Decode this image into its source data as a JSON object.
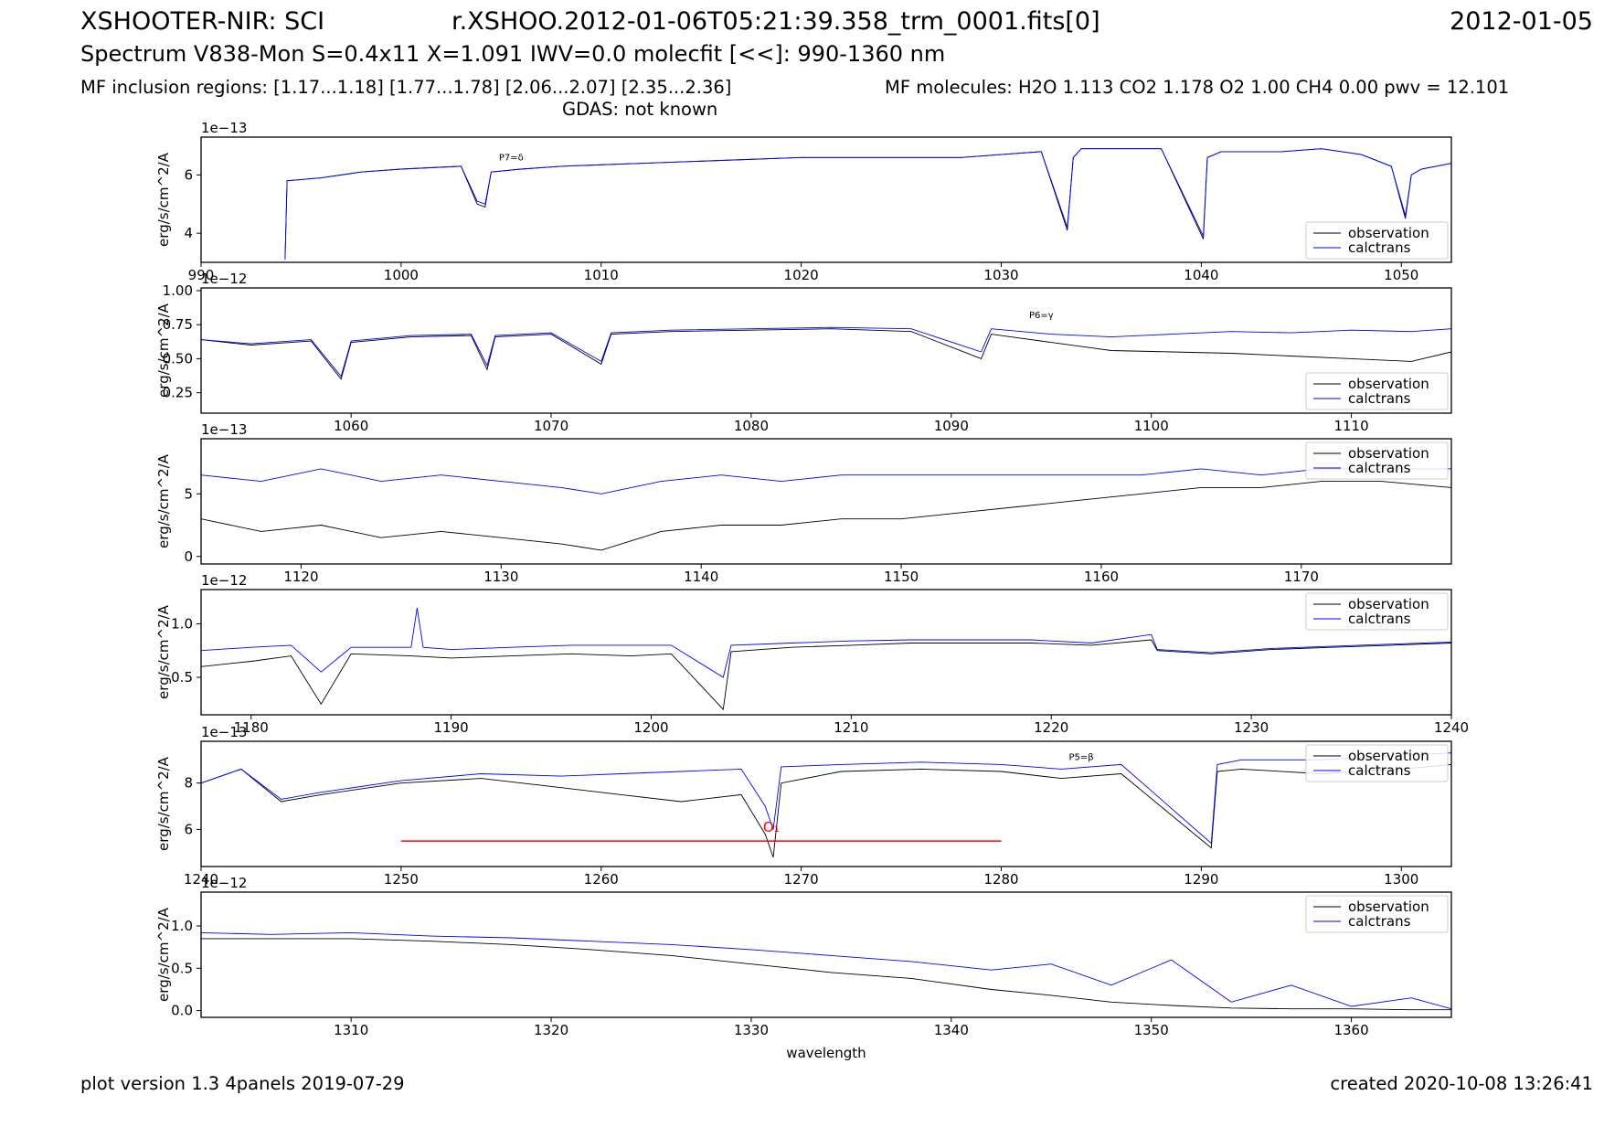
{
  "header": {
    "instrument": "XSHOOTER-NIR: SCI",
    "filename": "r.XSHOO.2012-01-06T05:21:39.358_trm_0001.fits[0]",
    "date": "2012-01-05",
    "spectrum_line": "Spectrum V838-Mon S=0.4x11 X=1.091 IWV=0.0 molecfit [<<]: 990-1360 nm",
    "inclusion_regions": "MF inclusion regions:  [1.17...1.18]  [1.77...1.78]  [2.06...2.07]  [2.35...2.36]",
    "molecules": "MF molecules: H2O 1.113 CO2 1.178 O2 1.00 CH4 0.00 pwv = 12.101",
    "gdas": "GDAS: not known"
  },
  "footer": {
    "plot_version": "plot version 1.3 4panels  2019-07-29",
    "created": "created 2020-10-08 13:26:41"
  },
  "colors": {
    "observation": "#000000",
    "calctrans": "#0000ff",
    "marker": "#ff0000"
  },
  "chart_data": [
    {
      "type": "line",
      "xlim": [
        990,
        1052.5
      ],
      "ylim": [
        3.0,
        7.3
      ],
      "exponent": "1e−13",
      "ylabel": "erg/s/cm^2/A",
      "xlabel": "",
      "xticks": [
        990,
        1000,
        1010,
        1020,
        1030,
        1040,
        1050
      ],
      "xtick_labels": [
        "990",
        "1000",
        "1010",
        "1020",
        "1030",
        "1040",
        "1050"
      ],
      "yticks": [
        4,
        6
      ],
      "ytick_labels": [
        "4",
        "6"
      ],
      "legend": "bottom-right",
      "series": [
        {
          "name": "observation",
          "x": [
            994.2,
            994.3,
            996,
            998,
            1000,
            1003,
            1003.8,
            1004.2,
            1004.5,
            1006,
            1008,
            1012,
            1016,
            1020,
            1024,
            1028,
            1030,
            1032,
            1033.3,
            1033.6,
            1034,
            1036,
            1038,
            1040.1,
            1040.3,
            1041,
            1044,
            1046,
            1048,
            1049.5,
            1050.2,
            1050.5,
            1051,
            1052.5
          ],
          "y": [
            3.1,
            5.8,
            5.9,
            6.1,
            6.2,
            6.3,
            5.0,
            4.9,
            6.1,
            6.2,
            6.3,
            6.4,
            6.5,
            6.6,
            6.6,
            6.6,
            6.7,
            6.8,
            4.1,
            6.6,
            6.9,
            6.9,
            6.9,
            3.8,
            6.6,
            6.8,
            6.8,
            6.9,
            6.7,
            6.3,
            4.5,
            6.0,
            6.2,
            6.4
          ]
        },
        {
          "name": "calctrans",
          "x": [
            994.2,
            994.3,
            996,
            998,
            1000,
            1003,
            1003.8,
            1004.2,
            1004.5,
            1006,
            1008,
            1012,
            1016,
            1020,
            1024,
            1028,
            1030,
            1032,
            1033.3,
            1033.6,
            1034,
            1036,
            1038,
            1040.1,
            1040.3,
            1041,
            1044,
            1046,
            1048,
            1049.5,
            1050.2,
            1050.5,
            1051,
            1052.5
          ],
          "y": [
            3.1,
            5.8,
            5.9,
            6.1,
            6.2,
            6.3,
            5.1,
            5.0,
            6.1,
            6.2,
            6.3,
            6.4,
            6.5,
            6.6,
            6.6,
            6.6,
            6.7,
            6.8,
            4.2,
            6.6,
            6.9,
            6.9,
            6.9,
            3.9,
            6.6,
            6.8,
            6.8,
            6.9,
            6.7,
            6.3,
            4.6,
            6.0,
            6.2,
            6.4
          ]
        }
      ],
      "annotations": [
        {
          "text": "P7=δ",
          "x": 1005.5,
          "y": 6.5
        }
      ]
    },
    {
      "type": "line",
      "xlim": [
        1052.5,
        1115
      ],
      "ylim": [
        0.1,
        1.02
      ],
      "exponent": "1e−12",
      "ylabel": "erg/s/cm^2/A",
      "xlabel": "",
      "xticks": [
        1060,
        1070,
        1080,
        1090,
        1100,
        1110
      ],
      "xtick_labels": [
        "1060",
        "1070",
        "1080",
        "1090",
        "1100",
        "1110"
      ],
      "yticks": [
        0.25,
        0.5,
        0.75,
        1.0
      ],
      "ytick_labels": [
        "0.25",
        "0.50",
        "0.75",
        "1.00"
      ],
      "legend": "bottom-right",
      "series": [
        {
          "name": "observation",
          "x": [
            1052.5,
            1055,
            1058,
            1059.5,
            1060,
            1063,
            1066,
            1066.8,
            1067.2,
            1070,
            1072.5,
            1073,
            1076,
            1080,
            1084,
            1088,
            1091.5,
            1092,
            1095,
            1098,
            1101,
            1104,
            1107,
            1110,
            1113,
            1115
          ],
          "y": [
            0.64,
            0.6,
            0.63,
            0.35,
            0.62,
            0.66,
            0.67,
            0.42,
            0.66,
            0.68,
            0.46,
            0.68,
            0.7,
            0.71,
            0.72,
            0.7,
            0.5,
            0.68,
            0.62,
            0.56,
            0.55,
            0.54,
            0.52,
            0.5,
            0.48,
            0.55
          ]
        },
        {
          "name": "calctrans",
          "x": [
            1052.5,
            1055,
            1058,
            1059.5,
            1060,
            1063,
            1066,
            1066.8,
            1067.2,
            1070,
            1072.5,
            1073,
            1076,
            1080,
            1084,
            1088,
            1091.5,
            1092,
            1095,
            1098,
            1101,
            1104,
            1107,
            1110,
            1113,
            1115
          ],
          "y": [
            0.64,
            0.61,
            0.64,
            0.37,
            0.63,
            0.67,
            0.68,
            0.45,
            0.67,
            0.69,
            0.48,
            0.69,
            0.71,
            0.72,
            0.73,
            0.72,
            0.55,
            0.72,
            0.68,
            0.66,
            0.68,
            0.7,
            0.69,
            0.71,
            0.7,
            0.72
          ]
        }
      ],
      "annotations": [
        {
          "text": "P6=γ",
          "x": 1094.5,
          "y": 0.8
        }
      ]
    },
    {
      "type": "line",
      "xlim": [
        1115,
        1177.5
      ],
      "ylim": [
        -0.6,
        9.4
      ],
      "exponent": "1e−13",
      "ylabel": "erg/s/cm^2/A",
      "xlabel": "",
      "xticks": [
        1120,
        1130,
        1140,
        1150,
        1160,
        1170
      ],
      "xtick_labels": [
        "1120",
        "1130",
        "1140",
        "1150",
        "1160",
        "1170"
      ],
      "yticks": [
        0,
        5
      ],
      "ytick_labels": [
        "0",
        "5"
      ],
      "legend": "top-right",
      "series": [
        {
          "name": "observation",
          "x": [
            1115,
            1118,
            1121,
            1124,
            1127,
            1130,
            1133,
            1135,
            1138,
            1141,
            1144,
            1147,
            1150,
            1153,
            1156,
            1159,
            1162,
            1165,
            1168,
            1171,
            1174,
            1177.5
          ],
          "y": [
            3.0,
            2.0,
            2.5,
            1.5,
            2.0,
            1.5,
            1.0,
            0.5,
            2.0,
            2.5,
            2.5,
            3.0,
            3.0,
            3.5,
            4.0,
            4.5,
            5.0,
            5.5,
            5.5,
            6.0,
            6.0,
            5.5
          ]
        },
        {
          "name": "calctrans",
          "x": [
            1115,
            1118,
            1121,
            1124,
            1127,
            1130,
            1133,
            1135,
            1138,
            1141,
            1144,
            1147,
            1150,
            1153,
            1156,
            1159,
            1162,
            1165,
            1168,
            1171,
            1174,
            1177.5
          ],
          "y": [
            6.5,
            6.0,
            7.0,
            6.0,
            6.5,
            6.0,
            5.5,
            5.0,
            6.0,
            6.5,
            6.0,
            6.5,
            6.5,
            6.5,
            6.5,
            6.5,
            6.5,
            7.0,
            6.5,
            7.0,
            7.0,
            7.0
          ]
        }
      ],
      "annotations": []
    },
    {
      "type": "line",
      "xlim": [
        1177.5,
        1240
      ],
      "ylim": [
        0.15,
        1.32
      ],
      "exponent": "1e−12",
      "ylabel": "erg/s/cm^2/A",
      "xlabel": "",
      "xticks": [
        1180,
        1190,
        1200,
        1210,
        1220,
        1230,
        1240
      ],
      "xtick_labels": [
        "1180",
        "1190",
        "1200",
        "1210",
        "1220",
        "1230",
        "1240"
      ],
      "yticks": [
        0.5,
        1.0
      ],
      "ytick_labels": [
        "0.5",
        "1.0"
      ],
      "legend": "top-right",
      "series": [
        {
          "name": "observation",
          "x": [
            1177.5,
            1180,
            1182,
            1183.5,
            1185,
            1188,
            1190,
            1193,
            1196,
            1199,
            1201,
            1203.6,
            1204,
            1207,
            1210,
            1213,
            1216,
            1219,
            1222,
            1225,
            1225.3,
            1228,
            1231,
            1234,
            1237,
            1240
          ],
          "y": [
            0.6,
            0.65,
            0.7,
            0.25,
            0.72,
            0.7,
            0.68,
            0.7,
            0.72,
            0.7,
            0.72,
            0.2,
            0.74,
            0.78,
            0.8,
            0.82,
            0.82,
            0.82,
            0.8,
            0.85,
            0.75,
            0.72,
            0.76,
            0.78,
            0.8,
            0.82
          ]
        },
        {
          "name": "calctrans",
          "x": [
            1177.5,
            1180,
            1182,
            1183.5,
            1185,
            1188,
            1188.3,
            1188.6,
            1190,
            1193,
            1196,
            1199,
            1201,
            1203.6,
            1204,
            1207,
            1210,
            1213,
            1216,
            1219,
            1222,
            1225,
            1225.3,
            1228,
            1231,
            1234,
            1237,
            1240
          ],
          "y": [
            0.75,
            0.78,
            0.8,
            0.55,
            0.78,
            0.78,
            1.15,
            0.78,
            0.76,
            0.78,
            0.8,
            0.8,
            0.8,
            0.5,
            0.8,
            0.82,
            0.84,
            0.85,
            0.85,
            0.85,
            0.82,
            0.9,
            0.76,
            0.73,
            0.77,
            0.79,
            0.81,
            0.83
          ]
        }
      ],
      "annotations": []
    },
    {
      "type": "line",
      "xlim": [
        1240,
        1302.5
      ],
      "ylim": [
        4.4,
        9.8
      ],
      "exponent": "1e−13",
      "ylabel": "erg/s/cm^2/A",
      "xlabel": "",
      "xticks": [
        1240,
        1250,
        1260,
        1270,
        1280,
        1290,
        1300
      ],
      "xtick_labels": [
        "1240",
        "1250",
        "1260",
        "1270",
        "1280",
        "1290",
        "1300"
      ],
      "yticks": [
        6,
        8
      ],
      "ytick_labels": [
        "6",
        "8"
      ],
      "legend": "top-right",
      "series": [
        {
          "name": "observation",
          "x": [
            1240,
            1242,
            1244,
            1246,
            1250,
            1254,
            1258,
            1261,
            1264,
            1267,
            1268.2,
            1268.6,
            1269,
            1272,
            1276,
            1280,
            1283,
            1286,
            1290.5,
            1290.8,
            1292,
            1296,
            1300,
            1302.5
          ],
          "y": [
            8.0,
            8.6,
            7.2,
            7.5,
            8.0,
            8.2,
            7.8,
            7.5,
            7.2,
            7.5,
            5.8,
            4.8,
            8.0,
            8.5,
            8.6,
            8.5,
            8.2,
            8.4,
            5.2,
            8.5,
            8.6,
            8.4,
            8.6,
            8.8
          ]
        },
        {
          "name": "calctrans",
          "x": [
            1240,
            1242,
            1244,
            1246,
            1250,
            1254,
            1258,
            1261,
            1264,
            1267,
            1268.2,
            1268.6,
            1269,
            1272,
            1276,
            1280,
            1283,
            1286,
            1290.5,
            1290.8,
            1292,
            1296,
            1300,
            1302.5
          ],
          "y": [
            8.0,
            8.6,
            7.3,
            7.6,
            8.1,
            8.4,
            8.3,
            8.4,
            8.5,
            8.6,
            7.0,
            6.0,
            8.7,
            8.8,
            8.9,
            8.8,
            8.6,
            8.8,
            5.4,
            8.8,
            9.0,
            9.0,
            9.2,
            9.3
          ]
        }
      ],
      "annotations": [
        {
          "text": "P5=β",
          "x": 1284,
          "y": 9.0
        }
      ],
      "marker": {
        "label": "O₁",
        "label_x": 1268.5,
        "label_y": 5.9,
        "x_start": 1250,
        "x_end": 1280,
        "y": 5.5
      }
    },
    {
      "type": "line",
      "xlim": [
        1302.5,
        1365
      ],
      "ylim": [
        -0.08,
        1.4
      ],
      "exponent": "1e−12",
      "ylabel": "erg/s/cm^2/A",
      "xlabel": "wavelength",
      "xticks": [
        1310,
        1320,
        1330,
        1340,
        1350,
        1360
      ],
      "xtick_labels": [
        "1310",
        "1320",
        "1330",
        "1340",
        "1350",
        "1360"
      ],
      "yticks": [
        0.0,
        0.5,
        1.0
      ],
      "ytick_labels": [
        "0.0",
        "0.5",
        "1.0"
      ],
      "legend": "top-right",
      "series": [
        {
          "name": "observation",
          "x": [
            1302.5,
            1306,
            1310,
            1314,
            1318,
            1322,
            1326,
            1330,
            1334,
            1338,
            1342,
            1345,
            1348,
            1351,
            1354,
            1357,
            1360,
            1363,
            1365
          ],
          "y": [
            0.85,
            0.85,
            0.85,
            0.82,
            0.78,
            0.72,
            0.65,
            0.55,
            0.45,
            0.38,
            0.25,
            0.18,
            0.1,
            0.06,
            0.03,
            0.02,
            0.02,
            0.01,
            0.01
          ]
        },
        {
          "name": "calctrans",
          "x": [
            1302.5,
            1306,
            1310,
            1314,
            1318,
            1322,
            1326,
            1330,
            1334,
            1338,
            1342,
            1345,
            1348,
            1351,
            1354,
            1357,
            1360,
            1363,
            1365
          ],
          "y": [
            0.92,
            0.9,
            0.92,
            0.88,
            0.86,
            0.82,
            0.78,
            0.72,
            0.65,
            0.58,
            0.48,
            0.55,
            0.3,
            0.6,
            0.1,
            0.3,
            0.05,
            0.15,
            0.02
          ]
        }
      ],
      "annotations": []
    }
  ]
}
